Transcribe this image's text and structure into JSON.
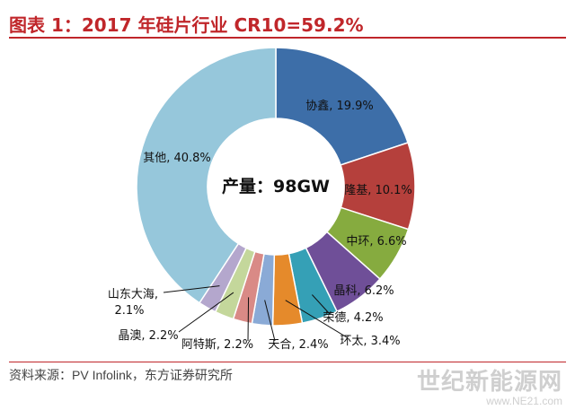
{
  "header": {
    "title": "图表 1：2017 年硅片行业 CR10=59.2%"
  },
  "center_label": "产量：98GW",
  "footer": {
    "source": "资料来源：PV Infolink，东方证券研究所"
  },
  "watermark": {
    "line1": "世纪新能源网",
    "line2": "www.NE21.com"
  },
  "chart_data": {
    "type": "pie",
    "variant": "donut",
    "title": "图表 1：2017 年硅片行业 CR10=59.2%",
    "center_text": "产量：98GW",
    "slices": [
      {
        "name": "协鑫",
        "value": 19.9,
        "label": "协鑫, 19.9%",
        "color": "#3d6ea8"
      },
      {
        "name": "隆基",
        "value": 10.1,
        "label": "隆基, 10.1%",
        "color": "#b5403c"
      },
      {
        "name": "中环",
        "value": 6.6,
        "label": "中环, 6.6%",
        "color": "#86ab3f"
      },
      {
        "name": "晶科",
        "value": 6.2,
        "label": "晶科, 6.2%",
        "color": "#6f4f98"
      },
      {
        "name": "荣德",
        "value": 4.2,
        "label": "荣德, 4.2%",
        "color": "#35a0b6"
      },
      {
        "name": "环太",
        "value": 3.4,
        "label": "环太, 3.4%",
        "color": "#e58a2b"
      },
      {
        "name": "天合",
        "value": 2.4,
        "label": "天合, 2.4%",
        "color": "#8aaad6"
      },
      {
        "name": "阿特斯",
        "value": 2.2,
        "label": "阿特斯, 2.2%",
        "color": "#d98a86"
      },
      {
        "name": "晶澳",
        "value": 2.2,
        "label": "晶澳, 2.2%",
        "color": "#c4d79b"
      },
      {
        "name": "山东大海",
        "value": 2.1,
        "label": "山东大海, 2.1%",
        "color": "#b4a7cd"
      },
      {
        "name": "其他",
        "value": 40.8,
        "label": "其他, 40.8%",
        "color": "#96c7db"
      }
    ]
  }
}
